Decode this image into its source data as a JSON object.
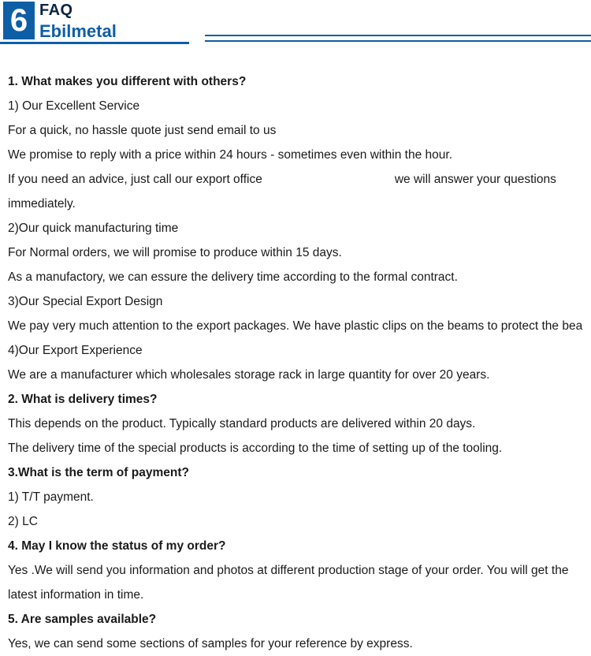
{
  "header": {
    "badge": "6",
    "faq_label": "FAQ",
    "brand": "Ebilmetal"
  },
  "colors": {
    "brand_blue": "#0e5ea6",
    "text": "#1a1a1a",
    "bg": "#ffffff"
  },
  "faq": {
    "q1": "1. What makes you different with others?",
    "q1_1": "1) Our Excellent Service",
    "q1_1a": "For a quick, no hassle quote just send email to us",
    "q1_1b": "We promise to reply with a price within 24 hours - sometimes even within the hour.",
    "q1_1c_pre": "If you need an advice, just call our export office",
    "q1_1c_post": "we will answer your questions",
    "q1_1d": "immediately.",
    "q1_2": "2)Our quick manufacturing time",
    "q1_2a": "For Normal orders, we will promise to produce within 15 days.",
    "q1_2b": "As a manufactory, we can essure the delivery time according to the formal contract.",
    "q1_3": "3)Our Special Export Design",
    "q1_3a": "We pay very much attention to the export packages. We have plastic clips on the beams to protect the beam",
    "q1_4": "4)Our Export Experience",
    "q1_4a": "We are a manufacturer which wholesales storage rack in large quantity for over 20 years.",
    "q2": "2. What is delivery times?",
    "q2a": "This depends on the product. Typically standard products are delivered within 20 days.",
    "q2b": "The delivery time of the special products is according to the time of setting up of the tooling.",
    "q3": "3.What is the term of payment?",
    "q3a": "1) T/T payment.",
    "q3b": "2) LC",
    "q4": "4. May I know the status of my order?",
    "q4a": "Yes .We will send you information and photos at different production stage of your order. You will get the",
    "q4b": "latest information in time.",
    "q5": "5. Are samples available?",
    "q5a": "Yes, we can send some sections of samples for your reference by express."
  }
}
